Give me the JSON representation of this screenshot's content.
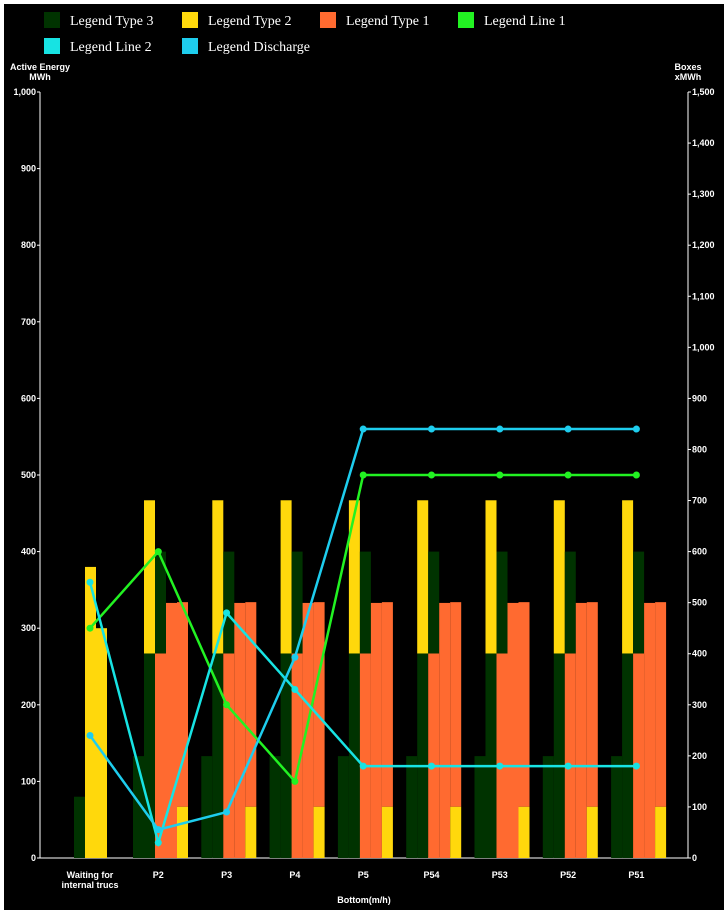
{
  "chart_data": {
    "type": "bar",
    "xlabel": "Bottom(m/h)",
    "ylabel_left": [
      "Active Energy",
      "MWh"
    ],
    "ylabel_right": [
      "Boxes",
      "xMWh"
    ],
    "ylim_left": [
      0,
      1000
    ],
    "ylim_right": [
      0,
      1500
    ],
    "yticks_left": [
      "0",
      "100",
      "200",
      "300",
      "400",
      "500",
      "600",
      "700",
      "800",
      "900",
      "1,000"
    ],
    "yticks_right": [
      "0",
      "100",
      "200",
      "300",
      "400",
      "500",
      "600",
      "700",
      "800",
      "900",
      "1,000",
      "1,100",
      "1,200",
      "1,300",
      "1,400",
      "1,500"
    ],
    "categories": [
      [
        "Waiting for",
        "internal trucs"
      ],
      [
        "P2"
      ],
      [
        "P3"
      ],
      [
        "P4"
      ],
      [
        "P5"
      ],
      [
        "P54"
      ],
      [
        "P53"
      ],
      [
        "P52"
      ],
      [
        "P51"
      ]
    ],
    "grid": false,
    "legend_placement": "top",
    "legend": [
      {
        "name": "Legend Type 3",
        "color": "#003300"
      },
      {
        "name": "Legend Type 2",
        "color": "#ffd80c"
      },
      {
        "name": "Legend Type 1",
        "color": "#ff6a30"
      },
      {
        "name": "Legend Line 1",
        "color": "#22f222"
      },
      {
        "name": "Legend Line 2",
        "color": "#17e3e3"
      },
      {
        "name": "Legend Discharge",
        "color": "#1ecdee"
      }
    ],
    "stacks": [
      {
        "name": "Legend Type 3 / Legend Type 2",
        "bottom_color": "#003300",
        "top_color": "#ffd80c",
        "bottom": [
          0,
          267,
          267,
          267,
          267,
          267,
          267,
          267,
          267
        ],
        "top": [
          0,
          200,
          200,
          200,
          200,
          200,
          200,
          200,
          200
        ]
      },
      {
        "name": "Legend Type 1 / Legend Type 3",
        "bottom_color": "#ff6a30",
        "top_color": "#003300",
        "bottom": [
          0,
          267,
          267,
          267,
          267,
          267,
          267,
          267,
          267
        ],
        "top": [
          0,
          133,
          133,
          133,
          133,
          133,
          133,
          133,
          133
        ]
      },
      {
        "name": "Legend Type 1 / Legend Type 2",
        "bottom_color": "#ff6a30",
        "top_color": "#ffd80c",
        "bottom": [
          0,
          333,
          333,
          333,
          333,
          333,
          333,
          333,
          333
        ],
        "top": [
          0,
          0,
          0,
          0,
          0,
          0,
          0,
          0,
          0
        ]
      },
      {
        "name": "Legend Type 2 / Legend Type 1",
        "bottom_color": "#ffd80c",
        "top_color": "#ff6a30",
        "bottom": [
          0,
          67,
          67,
          67,
          67,
          67,
          67,
          67,
          67
        ],
        "top": [
          0,
          267,
          267,
          267,
          267,
          267,
          267,
          267,
          267
        ]
      }
    ],
    "first_category_bars": [
      {
        "name": "Legend Type 3",
        "color": "#003300",
        "value": 80
      },
      {
        "name": "Legend Type 2",
        "color": "#ffd80c",
        "value": 380
      },
      {
        "name": "Legend Type 2",
        "color": "#ffd80c",
        "value": 300
      }
    ],
    "small_dark_bars": [
      0,
      133,
      133,
      133,
      133,
      133,
      133,
      133,
      133
    ],
    "lines": [
      {
        "name": "Legend Line 1",
        "color": "#22f222",
        "axis": "left",
        "values": [
          300,
          400,
          200,
          100,
          500,
          500,
          500,
          500,
          500
        ]
      },
      {
        "name": "Legend Line 2",
        "color": "#17e3e3",
        "axis": "left",
        "values": [
          360,
          20,
          320,
          220,
          120,
          120,
          120,
          120,
          120
        ]
      },
      {
        "name": "Legend Discharge",
        "color": "#1ecdee",
        "axis": "left",
        "values": [
          160,
          37,
          60,
          262,
          560,
          560,
          560,
          560,
          560
        ]
      }
    ]
  }
}
